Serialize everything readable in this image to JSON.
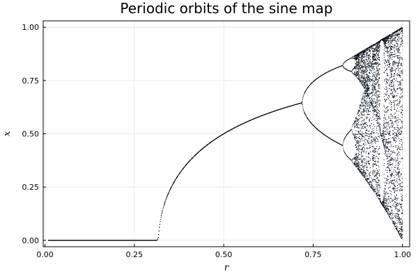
{
  "chart_data": {
    "type": "scatter",
    "title": "Periodic orbits of the sine map",
    "xlabel": "r",
    "ylabel": "x",
    "xlim": [
      -0.005,
      1.02
    ],
    "ylim": [
      -0.03,
      1.03
    ],
    "xticks": [
      0.0,
      0.25,
      0.5,
      0.75,
      1.0
    ],
    "xtick_labels": [
      "0.00",
      "0.25",
      "0.50",
      "0.75",
      "1.00"
    ],
    "yticks": [
      0.0,
      0.25,
      0.5,
      0.75,
      1.0
    ],
    "ytick_labels": [
      "0.00",
      "0.25",
      "0.50",
      "0.75",
      "1.00"
    ],
    "grid": true,
    "legend": false,
    "marker_color": "#0d1117",
    "grid_color": "#e6e6e6",
    "series": [
      {
        "points": [
          [
            0.01,
            0.0
          ],
          [
            0.1,
            0.0
          ],
          [
            0.2,
            0.0
          ],
          [
            0.3,
            0.0
          ],
          [
            0.318,
            0.0
          ],
          [
            0.32,
            0.02
          ],
          [
            0.33,
            0.12
          ],
          [
            0.35,
            0.22
          ],
          [
            0.4,
            0.34
          ],
          [
            0.45,
            0.42
          ],
          [
            0.5,
            0.48
          ],
          [
            0.55,
            0.53
          ],
          [
            0.6,
            0.57
          ],
          [
            0.65,
            0.605
          ],
          [
            0.7,
            0.635
          ],
          [
            0.72,
            0.645
          ],
          [
            0.75,
            0.72
          ],
          [
            0.78,
            0.76
          ],
          [
            0.8,
            0.785
          ],
          [
            0.835,
            0.82
          ],
          [
            0.75,
            0.56
          ],
          [
            0.78,
            0.52
          ],
          [
            0.8,
            0.49
          ],
          [
            0.835,
            0.445
          ],
          [
            0.855,
            0.845
          ],
          [
            0.855,
            0.79
          ],
          [
            0.86,
            0.53
          ],
          [
            0.86,
            0.37
          ],
          [
            0.87,
            0.95
          ],
          [
            0.87,
            0.55
          ],
          [
            0.87,
            0.36
          ],
          [
            0.9,
            0.97
          ],
          [
            0.9,
            0.3
          ],
          [
            0.93,
            0.99
          ],
          [
            0.93,
            0.22
          ],
          [
            0.94,
            0.18
          ],
          [
            0.94,
            0.935
          ],
          [
            0.96,
            0.12
          ],
          [
            0.98,
            0.06
          ],
          [
            1.0,
            1.0
          ],
          [
            1.0,
            0.0
          ]
        ]
      }
    ]
  }
}
